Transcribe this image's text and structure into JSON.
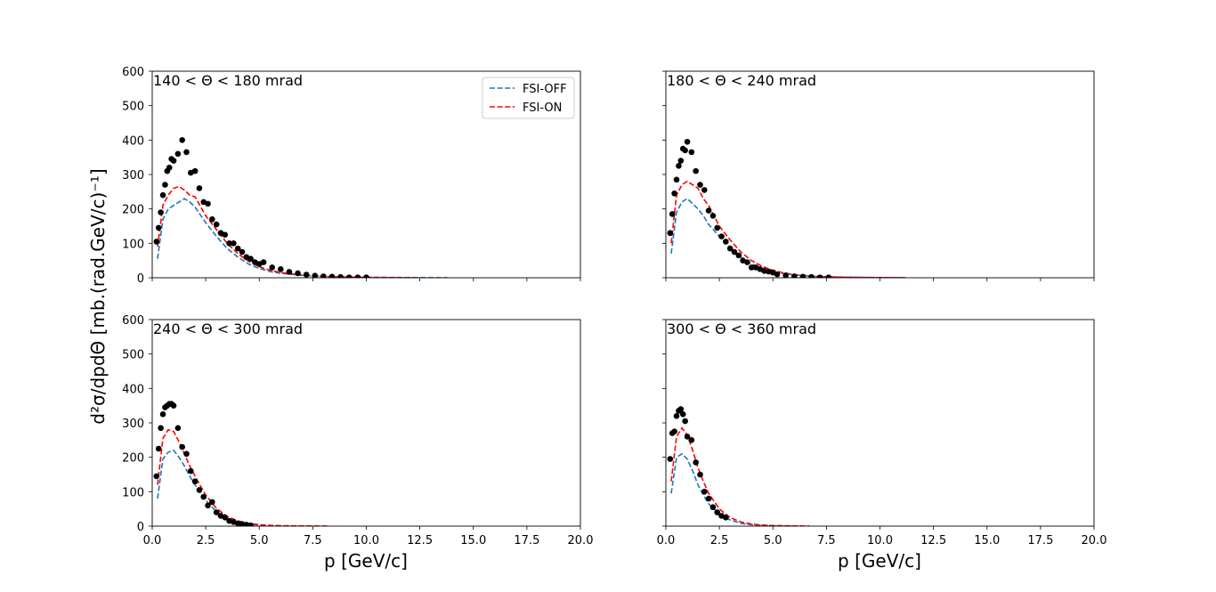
{
  "figure": {
    "ylabel": "d²σ/dpdΘ [mb.(rad.GeV/c)⁻¹]",
    "xlabel": "p [GeV/c]",
    "legend": {
      "location": "upper-right of first panel",
      "entries": [
        "FSI-OFF",
        "FSI-ON"
      ]
    },
    "colors": {
      "FSI-OFF": "#1f77b4",
      "FSI-ON": "#ff0000",
      "data": "#000000"
    }
  },
  "chart_data": [
    {
      "type": "line",
      "title": "140 < Θ < 180 mrad",
      "xlim": [
        0,
        20
      ],
      "ylim": [
        0,
        600
      ],
      "xticks": [
        "0.0",
        "2.5",
        "5.0",
        "7.5",
        "10.0",
        "12.5",
        "15.0",
        "17.5",
        "20.0"
      ],
      "yticks": [
        "0",
        "100",
        "200",
        "300",
        "400",
        "500",
        "600"
      ],
      "show_xticklabels": false,
      "show_yticklabels": true,
      "show_legend": true,
      "series": [
        {
          "name": "FSI-OFF",
          "style": "dashed",
          "x": [
            0.25,
            0.5,
            0.75,
            1.0,
            1.25,
            1.5,
            1.75,
            2.0,
            2.5,
            3.0,
            3.5,
            4.0,
            4.5,
            5.0,
            5.5,
            6.0,
            7.0,
            8.0,
            9.0,
            10.0,
            11.0,
            12.0,
            13.0,
            13.8
          ],
          "y": [
            55,
            170,
            200,
            210,
            220,
            230,
            220,
            205,
            160,
            120,
            85,
            60,
            40,
            27,
            18,
            13,
            7,
            4,
            2,
            1,
            1,
            0.5,
            0.3,
            0.2
          ]
        },
        {
          "name": "FSI-ON",
          "style": "dashed",
          "x": [
            0.25,
            0.5,
            0.75,
            1.0,
            1.25,
            1.5,
            1.75,
            2.0,
            2.5,
            3.0,
            3.5,
            4.0,
            4.5,
            5.0,
            5.5,
            6.0,
            7.0,
            8.0,
            9.0,
            10.0,
            11.0,
            12.2
          ],
          "y": [
            90,
            210,
            240,
            260,
            265,
            255,
            240,
            235,
            180,
            140,
            100,
            70,
            48,
            32,
            22,
            15,
            8,
            4,
            2,
            1,
            0.5,
            0.3
          ]
        },
        {
          "name": "data",
          "style": "markers",
          "x": [
            0.2,
            0.3,
            0.4,
            0.5,
            0.6,
            0.7,
            0.8,
            0.9,
            1.0,
            1.2,
            1.4,
            1.6,
            1.8,
            2.0,
            2.2,
            2.4,
            2.6,
            2.8,
            3.0,
            3.2,
            3.4,
            3.6,
            3.8,
            4.0,
            4.2,
            4.4,
            4.6,
            4.8,
            5.0,
            5.2,
            5.6,
            6.0,
            6.4,
            6.8,
            7.2,
            7.6,
            8.0,
            8.4,
            8.8,
            9.2,
            9.6,
            10.0
          ],
          "y": [
            105,
            145,
            190,
            240,
            270,
            310,
            320,
            345,
            340,
            360,
            400,
            365,
            305,
            310,
            260,
            220,
            215,
            170,
            155,
            130,
            125,
            100,
            100,
            85,
            75,
            60,
            55,
            45,
            40,
            45,
            30,
            25,
            17,
            13,
            9,
            6,
            4,
            3,
            2,
            1,
            1,
            1
          ]
        }
      ]
    },
    {
      "type": "line",
      "title": "180 < Θ < 240 mrad",
      "xlim": [
        0,
        20
      ],
      "ylim": [
        0,
        600
      ],
      "xticks": [
        "0.0",
        "2.5",
        "5.0",
        "7.5",
        "10.0",
        "12.5",
        "15.0",
        "17.5",
        "20.0"
      ],
      "yticks": [
        "0",
        "100",
        "200",
        "300",
        "400",
        "500",
        "600"
      ],
      "show_xticklabels": false,
      "show_yticklabels": false,
      "show_legend": false,
      "series": [
        {
          "name": "FSI-OFF",
          "style": "dashed",
          "x": [
            0.25,
            0.5,
            0.75,
            1.0,
            1.25,
            1.5,
            1.75,
            2.0,
            2.5,
            3.0,
            3.5,
            4.0,
            4.5,
            5.0,
            5.5,
            6.0,
            7.0,
            8.0,
            9.0,
            10.0,
            11.0
          ],
          "y": [
            70,
            190,
            220,
            230,
            215,
            200,
            180,
            155,
            120,
            90,
            60,
            40,
            27,
            18,
            12,
            8,
            4,
            2,
            1,
            0.5,
            0.3
          ]
        },
        {
          "name": "FSI-ON",
          "style": "dashed",
          "x": [
            0.25,
            0.5,
            0.75,
            1.0,
            1.25,
            1.5,
            1.75,
            2.0,
            2.5,
            3.0,
            3.5,
            4.0,
            4.5,
            5.0,
            5.5,
            6.0,
            7.0,
            8.0,
            9.0,
            10.0,
            11.2
          ],
          "y": [
            100,
            240,
            270,
            280,
            270,
            260,
            230,
            210,
            150,
            110,
            75,
            50,
            33,
            22,
            14,
            9,
            4,
            2,
            1,
            0.5,
            0.3
          ]
        },
        {
          "name": "data",
          "style": "markers",
          "x": [
            0.2,
            0.3,
            0.4,
            0.5,
            0.6,
            0.7,
            0.8,
            0.9,
            1.0,
            1.2,
            1.4,
            1.6,
            1.8,
            2.0,
            2.2,
            2.4,
            2.6,
            2.8,
            3.0,
            3.2,
            3.4,
            3.6,
            3.8,
            4.0,
            4.2,
            4.4,
            4.6,
            4.8,
            5.0,
            5.2,
            5.6,
            6.0,
            6.4,
            6.8,
            7.2,
            7.6
          ],
          "y": [
            130,
            185,
            245,
            285,
            325,
            340,
            375,
            370,
            395,
            365,
            310,
            270,
            255,
            195,
            180,
            145,
            120,
            105,
            85,
            75,
            65,
            50,
            45,
            30,
            30,
            25,
            20,
            18,
            15,
            10,
            7,
            4,
            3,
            2,
            1,
            1
          ]
        }
      ]
    },
    {
      "type": "line",
      "title": "240 < Θ < 300 mrad",
      "xlim": [
        0,
        20
      ],
      "ylim": [
        0,
        600
      ],
      "xticks": [
        "0.0",
        "2.5",
        "5.0",
        "7.5",
        "10.0",
        "12.5",
        "15.0",
        "17.5",
        "20.0"
      ],
      "yticks": [
        "0",
        "100",
        "200",
        "300",
        "400",
        "500",
        "600"
      ],
      "show_xticklabels": true,
      "show_yticklabels": true,
      "show_legend": false,
      "series": [
        {
          "name": "FSI-OFF",
          "style": "dashed",
          "x": [
            0.25,
            0.5,
            0.75,
            1.0,
            1.25,
            1.5,
            1.75,
            2.0,
            2.5,
            3.0,
            3.5,
            4.0,
            4.5,
            5.0,
            5.5,
            6.0,
            6.5,
            7.0
          ],
          "y": [
            80,
            195,
            215,
            220,
            200,
            175,
            145,
            120,
            75,
            42,
            22,
            12,
            6,
            3,
            2,
            1,
            0.5,
            0.3
          ]
        },
        {
          "name": "FSI-ON",
          "style": "dashed",
          "x": [
            0.25,
            0.5,
            0.75,
            1.0,
            1.25,
            1.5,
            1.75,
            2.0,
            2.5,
            3.0,
            3.5,
            4.0,
            4.5,
            5.0,
            5.5,
            6.0,
            7.0,
            8.2
          ],
          "y": [
            120,
            255,
            280,
            275,
            245,
            210,
            175,
            145,
            90,
            52,
            28,
            15,
            8,
            4,
            2,
            1,
            0.5,
            0.3
          ]
        },
        {
          "name": "data",
          "style": "markers",
          "x": [
            0.2,
            0.3,
            0.4,
            0.5,
            0.6,
            0.7,
            0.8,
            0.9,
            1.0,
            1.2,
            1.4,
            1.6,
            1.8,
            2.0,
            2.2,
            2.4,
            2.6,
            2.8,
            3.0,
            3.2,
            3.4,
            3.6,
            3.8,
            4.0,
            4.2,
            4.4,
            4.6
          ],
          "y": [
            145,
            225,
            285,
            325,
            345,
            350,
            355,
            355,
            350,
            285,
            230,
            210,
            160,
            130,
            105,
            85,
            60,
            70,
            40,
            30,
            25,
            15,
            12,
            8,
            6,
            4,
            2
          ]
        }
      ]
    },
    {
      "type": "line",
      "title": "300 < Θ < 360 mrad",
      "xlim": [
        0,
        20
      ],
      "ylim": [
        0,
        600
      ],
      "xticks": [
        "0.0",
        "2.5",
        "5.0",
        "7.5",
        "10.0",
        "12.5",
        "15.0",
        "17.5",
        "20.0"
      ],
      "yticks": [
        "0",
        "100",
        "200",
        "300",
        "400",
        "500",
        "600"
      ],
      "show_xticklabels": true,
      "show_yticklabels": false,
      "show_legend": false,
      "series": [
        {
          "name": "FSI-OFF",
          "style": "dashed",
          "x": [
            0.25,
            0.5,
            0.75,
            1.0,
            1.25,
            1.5,
            1.75,
            2.0,
            2.5,
            3.0,
            3.5,
            4.0,
            4.5,
            5.0,
            5.5,
            6.0
          ],
          "y": [
            95,
            200,
            210,
            195,
            160,
            120,
            90,
            65,
            35,
            18,
            8,
            4,
            2,
            1,
            0.5,
            0.3
          ]
        },
        {
          "name": "FSI-ON",
          "style": "dashed",
          "x": [
            0.25,
            0.5,
            0.75,
            1.0,
            1.25,
            1.5,
            1.75,
            2.0,
            2.5,
            3.0,
            3.5,
            4.0,
            4.5,
            5.0,
            5.5,
            6.0,
            6.7
          ],
          "y": [
            130,
            260,
            285,
            265,
            220,
            170,
            130,
            95,
            50,
            25,
            12,
            6,
            3,
            1.5,
            1,
            0.5,
            0.3
          ]
        },
        {
          "name": "data",
          "style": "markers",
          "x": [
            0.2,
            0.3,
            0.4,
            0.5,
            0.6,
            0.7,
            0.8,
            0.9,
            1.0,
            1.2,
            1.4,
            1.6,
            1.8,
            2.0,
            2.2,
            2.4,
            2.6,
            2.8
          ],
          "y": [
            195,
            270,
            275,
            320,
            335,
            340,
            325,
            305,
            260,
            250,
            185,
            150,
            100,
            80,
            55,
            40,
            30,
            25
          ]
        }
      ]
    }
  ]
}
